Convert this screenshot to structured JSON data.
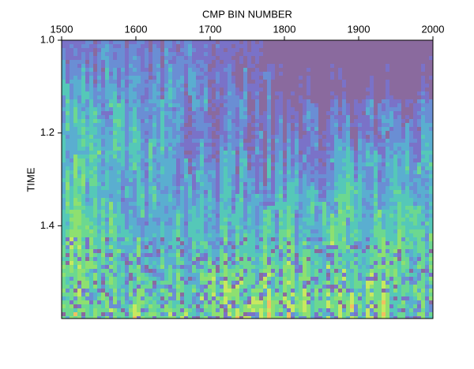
{
  "chart_data": {
    "type": "image",
    "x_label": "CMP BIN NUMBER",
    "y_label": "TIME",
    "xlim": [
      1500,
      2000
    ],
    "xticks": [
      1500,
      1600,
      1700,
      1800,
      1900,
      2000
    ],
    "ylim": [
      1,
      1.6
    ],
    "yticks": [
      {
        "value": 1,
        "label": "1.0"
      },
      1.2,
      1.4
    ],
    "y_direction": "down",
    "x_axis_position": "top"
  }
}
